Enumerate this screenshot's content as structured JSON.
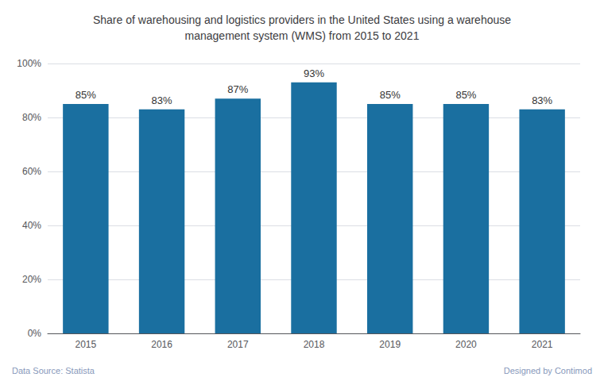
{
  "chart_data": {
    "type": "bar",
    "title": "Share of warehousing and logistics providers in the United States using a warehouse\nmanagement system (WMS) from 2015 to 2021",
    "categories": [
      "2015",
      "2016",
      "2017",
      "2018",
      "2019",
      "2020",
      "2021"
    ],
    "values": [
      85,
      83,
      87,
      93,
      85,
      85,
      83
    ],
    "value_labels": [
      "85%",
      "83%",
      "87%",
      "93%",
      "85%",
      "85%",
      "83%"
    ],
    "data_labels": true,
    "color": "#1a6fa0",
    "ylim": [
      0,
      100
    ],
    "yticks": [
      {
        "value": 0,
        "label": "0%"
      },
      {
        "value": 20,
        "label": "20%"
      },
      {
        "value": 40,
        "label": "40%"
      },
      {
        "value": 60,
        "label": "60%"
      },
      {
        "value": 80,
        "label": "80%"
      },
      {
        "value": 100,
        "label": "100%"
      }
    ],
    "grid": true,
    "annotations": [
      "Data Source: Statista",
      "Designed by Contimod"
    ]
  }
}
